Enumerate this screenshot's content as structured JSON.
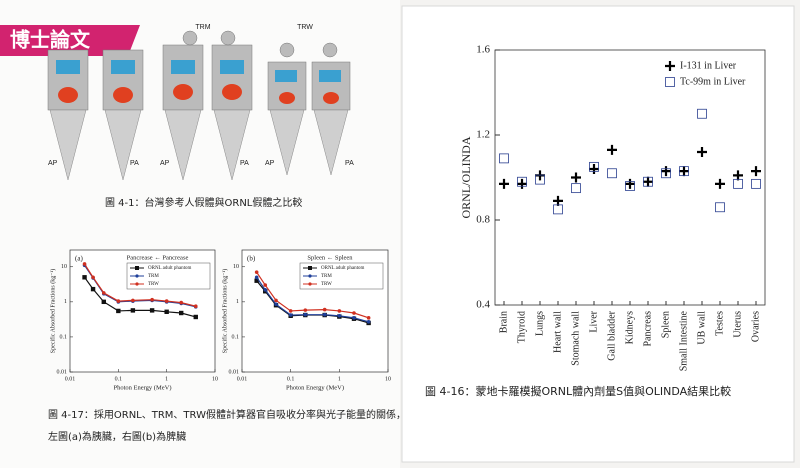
{
  "badge": "博士論文",
  "figure_4_1": {
    "labels": [
      "TRM",
      "TRW"
    ],
    "views": [
      "AP",
      "PA",
      "AP",
      "PA",
      "AP",
      "PA"
    ],
    "caption": "圖 4-1：台灣參考人假體與ORNL假體之比較"
  },
  "figure_4_17": {
    "caption": [
      "圖 4-17：採用ORNL、TRM、TRW假體計算器官自吸收分率與光子能量的關係，",
      "左圖(a)為胰臟，右圖(b)為脾臟"
    ]
  },
  "figure_4_16": {
    "caption": "圖 4-16：蒙地卡羅模擬ORNL體內劑量S值與OLINDA結果比較"
  },
  "chart_data": [
    {
      "type": "line",
      "panel": "(a)",
      "title": "Pancrease ← Pancrease",
      "x_label": "Photon Energy (MeV)",
      "y_label": "Specific Absorbed Fractions (kg⁻¹)",
      "x": [
        0.02,
        0.03,
        0.05,
        0.1,
        0.2,
        0.5,
        1,
        2,
        4
      ],
      "log_x": true,
      "log_y": true,
      "xlim": [
        0.01,
        10
      ],
      "xticks": [
        0.01,
        0.1,
        1,
        10
      ],
      "ylim": [
        0.01,
        30
      ],
      "yticks": [
        0.01,
        0.1,
        1,
        10
      ],
      "legend": "upper right",
      "series": [
        {
          "name": "ORNL adult phantom",
          "color": "#111111",
          "marker": "square",
          "values": [
            5,
            2.3,
            1,
            0.55,
            0.57,
            0.57,
            0.52,
            0.48,
            0.37
          ]
        },
        {
          "name": "TRM",
          "color": "#1f3f9a",
          "marker": "circle",
          "values": [
            11,
            4.8,
            1.7,
            1,
            1.05,
            1.1,
            1,
            0.9,
            0.72
          ]
        },
        {
          "name": "TRW",
          "color": "#d03020",
          "marker": "circle",
          "values": [
            12,
            5,
            1.8,
            1.05,
            1.1,
            1.15,
            1.05,
            0.95,
            0.75
          ]
        }
      ]
    },
    {
      "type": "line",
      "panel": "(b)",
      "title": "Spleen ← Spleen",
      "x_label": "Photon Energy (MeV)",
      "y_label": "Specific Absorbed Fractions (kg⁻¹)",
      "x": [
        0.02,
        0.03,
        0.05,
        0.1,
        0.2,
        0.5,
        1,
        2,
        4
      ],
      "log_x": true,
      "log_y": true,
      "xlim": [
        0.01,
        10
      ],
      "xticks": [
        0.01,
        0.1,
        1,
        10
      ],
      "ylim": [
        0.01,
        30
      ],
      "yticks": [
        0.01,
        0.1,
        1,
        10
      ],
      "legend": "upper right",
      "series": [
        {
          "name": "ORNL adult phantom",
          "color": "#111111",
          "marker": "square",
          "values": [
            4,
            2,
            0.8,
            0.4,
            0.42,
            0.42,
            0.38,
            0.33,
            0.25
          ]
        },
        {
          "name": "TRM",
          "color": "#1f3f9a",
          "marker": "circle",
          "values": [
            5,
            2.2,
            0.85,
            0.42,
            0.43,
            0.43,
            0.4,
            0.35,
            0.27
          ]
        },
        {
          "name": "TRW",
          "color": "#d03020",
          "marker": "circle",
          "values": [
            7,
            3,
            1.1,
            0.55,
            0.58,
            0.6,
            0.55,
            0.48,
            0.35
          ]
        }
      ]
    },
    {
      "type": "scatter",
      "y_label": "ORNL/OLINDA",
      "categories": [
        "Brain",
        "Thyroid",
        "Lungs",
        "Heart wall",
        "Stomach wall",
        "Liver",
        "Gall bladder",
        "Kidneys",
        "Pancreas",
        "Spleen",
        "Small Intestine",
        "UB wall",
        "Testes",
        "Uterus",
        "Ovaries"
      ],
      "ylim": [
        0.4,
        1.6
      ],
      "yticks": [
        0.4,
        0.8,
        1.2,
        1.6
      ],
      "legend": "upper right",
      "series": [
        {
          "name": "I-131 in Liver",
          "color": "#000000",
          "marker": "plus",
          "values": [
            0.97,
            0.97,
            1.01,
            0.89,
            1.0,
            1.04,
            1.13,
            0.97,
            0.98,
            1.03,
            1.03,
            1.12,
            0.97,
            1.01,
            1.03
          ]
        },
        {
          "name": "Tc-99m in Liver",
          "color": "#2a3f8f",
          "marker": "square",
          "values": [
            1.09,
            0.98,
            0.99,
            0.85,
            0.95,
            1.05,
            1.02,
            0.96,
            0.98,
            1.02,
            1.03,
            1.3,
            0.86,
            0.97,
            0.97
          ]
        }
      ]
    }
  ]
}
